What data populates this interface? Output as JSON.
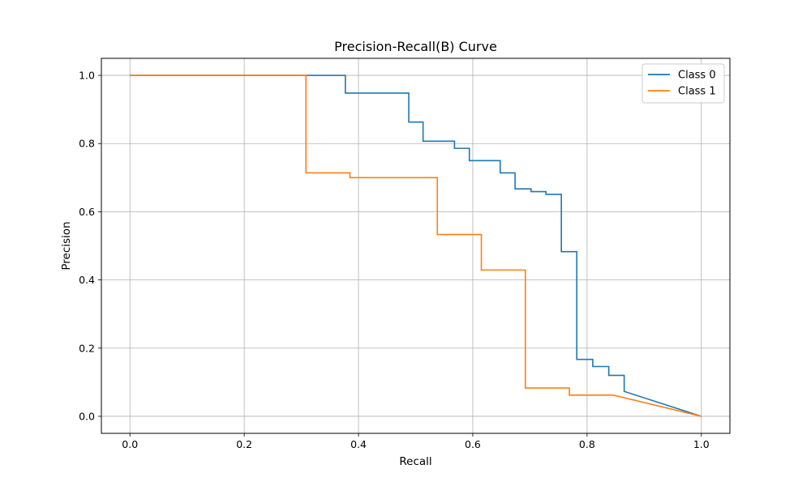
{
  "chart_data": {
    "type": "line",
    "title": "Precision-Recall(B) Curve",
    "xlabel": "Recall",
    "ylabel": "Precision",
    "xlim": [
      -0.05,
      1.05
    ],
    "ylim": [
      -0.05,
      1.05
    ],
    "xticks": [
      "0.0",
      "0.2",
      "0.4",
      "0.6",
      "0.8",
      "1.0"
    ],
    "yticks": [
      "0.0",
      "0.2",
      "0.4",
      "0.6",
      "0.8",
      "1.0"
    ],
    "grid": true,
    "legend": "top-right",
    "series": [
      {
        "name": "Class 0",
        "color": "#1f77b4",
        "x": [
          0.0,
          0.377,
          0.377,
          0.488,
          0.488,
          0.513,
          0.513,
          0.568,
          0.568,
          0.594,
          0.594,
          0.648,
          0.648,
          0.674,
          0.674,
          0.702,
          0.702,
          0.728,
          0.728,
          0.755,
          0.755,
          0.782,
          0.782,
          0.81,
          0.81,
          0.838,
          0.838,
          0.865,
          0.865,
          1.0
        ],
        "y": [
          1.0,
          1.0,
          0.948,
          0.948,
          0.863,
          0.863,
          0.807,
          0.807,
          0.786,
          0.786,
          0.75,
          0.75,
          0.714,
          0.714,
          0.667,
          0.667,
          0.659,
          0.659,
          0.651,
          0.651,
          0.483,
          0.483,
          0.167,
          0.167,
          0.146,
          0.146,
          0.12,
          0.12,
          0.073,
          0.0
        ]
      },
      {
        "name": "Class 1",
        "color": "#ff7f0e",
        "x": [
          0.0,
          0.308,
          0.308,
          0.385,
          0.385,
          0.538,
          0.538,
          0.615,
          0.615,
          0.692,
          0.692,
          0.769,
          0.769,
          0.846,
          1.0
        ],
        "y": [
          1.0,
          1.0,
          0.714,
          0.714,
          0.7,
          0.7,
          0.533,
          0.533,
          0.429,
          0.429,
          0.083,
          0.083,
          0.062,
          0.062,
          0.0
        ]
      }
    ]
  }
}
